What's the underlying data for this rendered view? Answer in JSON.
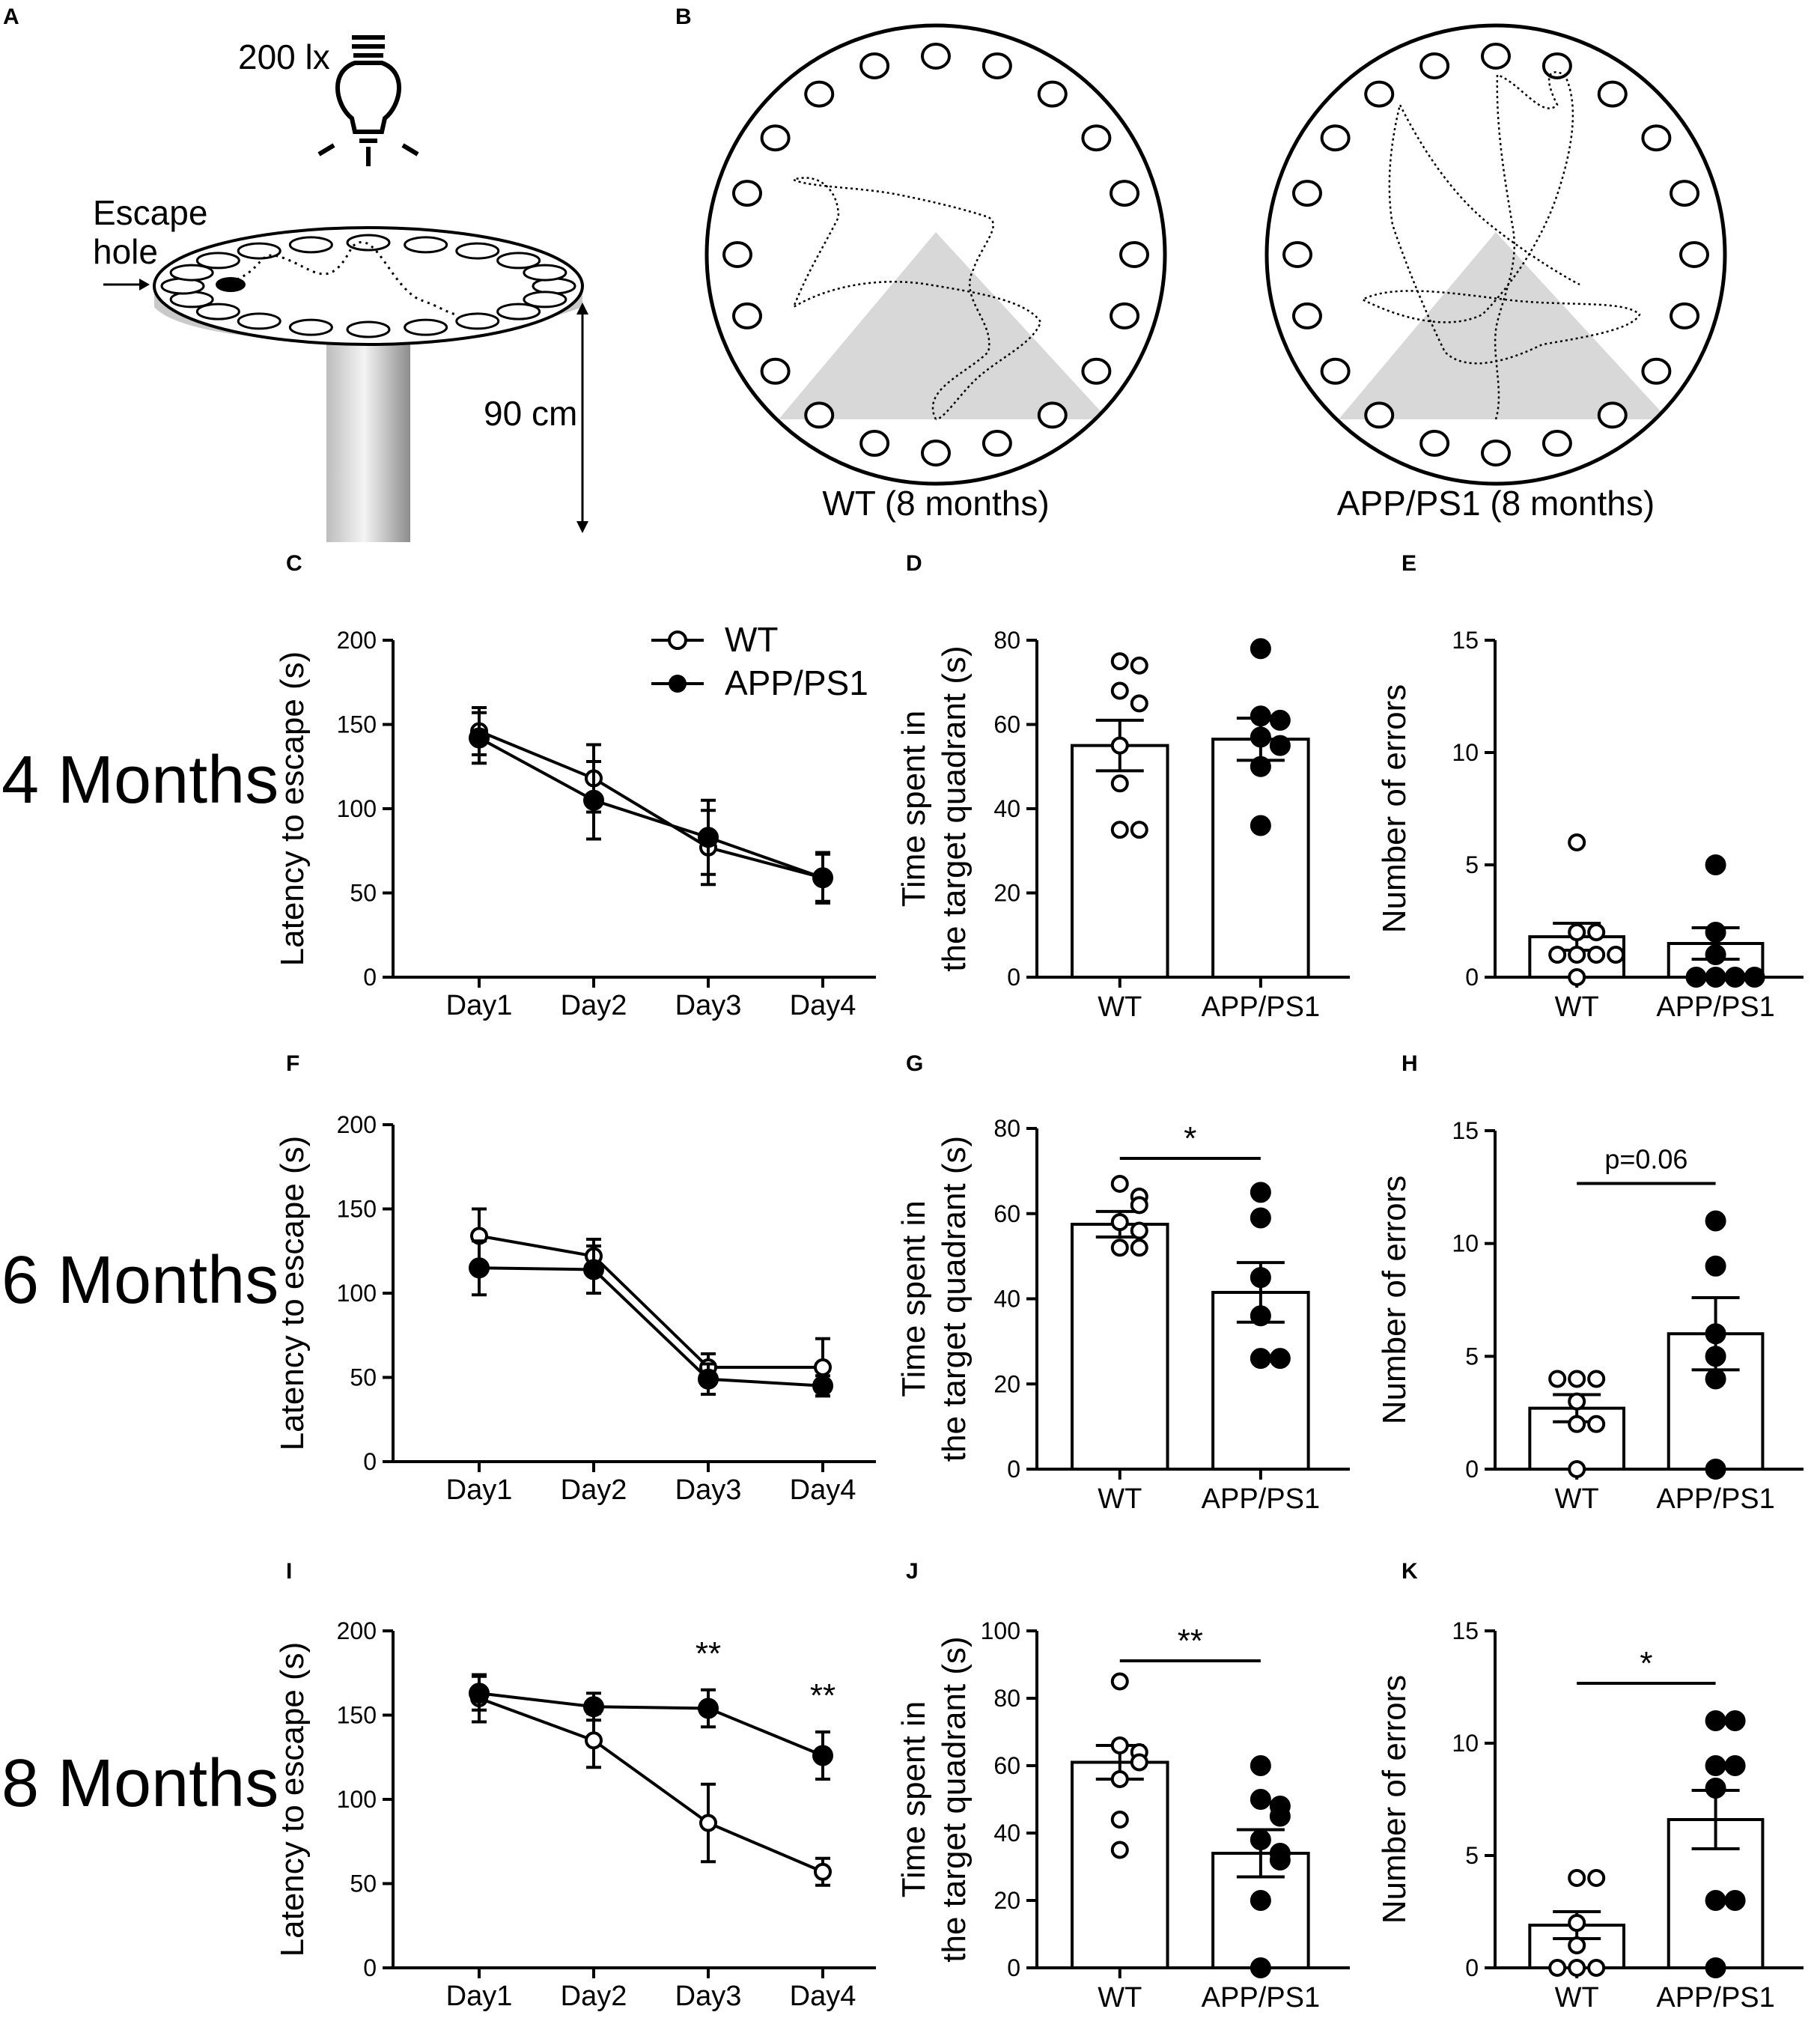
{
  "panel_labels": {
    "A": "A",
    "B": "B",
    "C": "C",
    "D": "D",
    "E": "E",
    "F": "F",
    "G": "G",
    "H": "H",
    "I": "I",
    "J": "J",
    "K": "K"
  },
  "panel_a": {
    "lux": "200 lx",
    "escape": "Escape",
    "hole": "hole",
    "height": "90 cm"
  },
  "panel_b": {
    "wt_caption": "WT (8 months)",
    "app_caption": "APP/PS1 (8 months)"
  },
  "row_labels": [
    "4 Months",
    "6 Months",
    "8 Months"
  ],
  "legend": {
    "wt": "WT",
    "app": "APP/PS1"
  },
  "chart_data": [
    {
      "id": "C",
      "type": "line",
      "title": "",
      "xlabel": "",
      "ylabel": "Latency to escape (s)",
      "ylim": [
        0,
        200
      ],
      "yticks": [
        0,
        50,
        100,
        150,
        200
      ],
      "categories": [
        "Day1",
        "Day2",
        "Day3",
        "Day4"
      ],
      "series": [
        {
          "name": "WT",
          "filled": false,
          "values": [
            146,
            118,
            77,
            59
          ],
          "errors": [
            14,
            20,
            22,
            15
          ]
        },
        {
          "name": "APP/PS1",
          "filled": true,
          "values": [
            142,
            105,
            83,
            59
          ],
          "errors": [
            15,
            23,
            22,
            14
          ]
        }
      ],
      "annotations": [
        {
          "index": 2,
          "text": ""
        },
        {
          "index": 3,
          "text": ""
        }
      ]
    },
    {
      "id": "D",
      "type": "bar",
      "ylabel": "Time spent in the target quadrant (s)",
      "ylabel_lines": [
        "Time spent in",
        "the target quadrant (s)"
      ],
      "ylim": [
        0,
        80
      ],
      "yticks": [
        0,
        20,
        40,
        60,
        80
      ],
      "categories": [
        "WT",
        "APP/PS1"
      ],
      "values": [
        55,
        56.5
      ],
      "errors": [
        6,
        5
      ],
      "points": [
        [
          75,
          74,
          68,
          65,
          55,
          46,
          35,
          35
        ],
        [
          78,
          62,
          61,
          57,
          55,
          50,
          36
        ]
      ],
      "significance": ""
    },
    {
      "id": "E",
      "type": "bar",
      "ylabel": "Number of errors",
      "ylim": [
        0,
        15
      ],
      "yticks": [
        0,
        5,
        10,
        15
      ],
      "categories": [
        "WT",
        "APP/PS1"
      ],
      "values": [
        1.8,
        1.5
      ],
      "errors": [
        0.6,
        0.7
      ],
      "points": [
        [
          6,
          2,
          2,
          1,
          1,
          1,
          1,
          0
        ],
        [
          5,
          2,
          1,
          0,
          0,
          0,
          0
        ]
      ],
      "significance": ""
    },
    {
      "id": "F",
      "type": "line",
      "ylabel": "Latency to escape (s)",
      "ylim": [
        0,
        200
      ],
      "yticks": [
        0,
        50,
        100,
        150,
        200
      ],
      "categories": [
        "Day1",
        "Day2",
        "Day3",
        "Day4"
      ],
      "series": [
        {
          "name": "WT",
          "filled": false,
          "values": [
            134,
            122,
            56,
            56
          ],
          "errors": [
            16,
            10,
            8,
            17
          ]
        },
        {
          "name": "APP/PS1",
          "filled": true,
          "values": [
            115,
            114,
            49,
            45
          ],
          "errors": [
            16,
            14,
            9,
            6
          ]
        }
      ],
      "annotations": [
        {
          "index": 2,
          "text": ""
        },
        {
          "index": 3,
          "text": ""
        }
      ]
    },
    {
      "id": "G",
      "type": "bar",
      "ylabel": "Time spent in the target quadrant (s)",
      "ylabel_lines": [
        "Time spent in",
        "the target quadrant (s)"
      ],
      "ylim": [
        0,
        80
      ],
      "yticks": [
        0,
        20,
        40,
        60,
        80
      ],
      "categories": [
        "WT",
        "APP/PS1"
      ],
      "values": [
        57.5,
        41.5
      ],
      "errors": [
        3,
        7
      ],
      "points": [
        [
          67,
          64,
          62,
          58,
          56,
          52,
          52
        ],
        [
          65,
          59,
          45,
          36,
          26,
          26
        ]
      ],
      "significance": "*"
    },
    {
      "id": "H",
      "type": "bar",
      "ylabel": "Number of errors",
      "ylim": [
        0,
        15
      ],
      "yticks": [
        0,
        5,
        10,
        15
      ],
      "categories": [
        "WT",
        "APP/PS1"
      ],
      "values": [
        2.7,
        6
      ],
      "errors": [
        0.6,
        1.6
      ],
      "points": [
        [
          4,
          4,
          4,
          3,
          2,
          2,
          0
        ],
        [
          11,
          9,
          6,
          5,
          4,
          0
        ]
      ],
      "significance": "p=0.06"
    },
    {
      "id": "I",
      "type": "line",
      "ylabel": "Latency to escape (s)",
      "ylim": [
        0,
        200
      ],
      "yticks": [
        0,
        50,
        100,
        150,
        200
      ],
      "categories": [
        "Day1",
        "Day2",
        "Day3",
        "Day4"
      ],
      "series": [
        {
          "name": "WT",
          "filled": false,
          "values": [
            160,
            135,
            86,
            57
          ],
          "errors": [
            14,
            16,
            23,
            8
          ]
        },
        {
          "name": "APP/PS1",
          "filled": true,
          "values": [
            163,
            155,
            154,
            126
          ],
          "errors": [
            10,
            8,
            11,
            14
          ]
        }
      ],
      "annotations": [
        {
          "index": 2,
          "text": "**"
        },
        {
          "index": 3,
          "text": "**"
        }
      ]
    },
    {
      "id": "J",
      "type": "bar",
      "ylabel": "Time spent in the target quadrant (s)",
      "ylabel_lines": [
        "Time spent in",
        "the target quadrant (s)"
      ],
      "ylim": [
        0,
        100
      ],
      "yticks": [
        0,
        20,
        40,
        60,
        80,
        100
      ],
      "categories": [
        "WT",
        "APP/PS1"
      ],
      "values": [
        61,
        34
      ],
      "errors": [
        5,
        7
      ],
      "points": [
        [
          85,
          66,
          64,
          61,
          56,
          44,
          35
        ],
        [
          60,
          50,
          48,
          45,
          38,
          34,
          32,
          20,
          0
        ]
      ],
      "significance": "**"
    },
    {
      "id": "K",
      "type": "bar",
      "ylabel": "Number of errors",
      "ylim": [
        0,
        15
      ],
      "yticks": [
        0,
        5,
        10,
        15
      ],
      "categories": [
        "WT",
        "APP/PS1"
      ],
      "values": [
        1.9,
        6.6
      ],
      "errors": [
        0.6,
        1.3
      ],
      "points": [
        [
          4,
          4,
          2,
          1,
          0,
          0,
          0
        ],
        [
          11,
          11,
          9,
          9,
          8,
          3,
          3,
          0
        ]
      ],
      "significance": "*"
    }
  ]
}
